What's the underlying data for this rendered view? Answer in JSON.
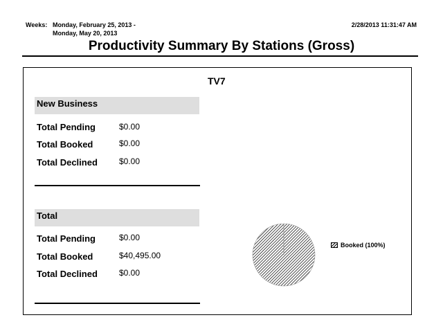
{
  "header": {
    "weeks_label": "Weeks:",
    "weeks_line1": "Monday, February 25, 2013 -",
    "weeks_line2": "Monday, May 20, 2013",
    "timestamp": "2/28/2013 11:31:47 AM",
    "title": "Productivity Summary By Stations (Gross)"
  },
  "station": "TV7",
  "sections": [
    {
      "title": "New Business",
      "rows": [
        {
          "label": "Total Pending",
          "value": "$0.00"
        },
        {
          "label": "Total Booked",
          "value": "$0.00"
        },
        {
          "label": "Total Declined",
          "value": "$0.00"
        }
      ]
    },
    {
      "title": "Total",
      "rows": [
        {
          "label": "Total Pending",
          "value": "$0.00"
        },
        {
          "label": "Total Booked",
          "value": "$40,495.00"
        },
        {
          "label": "Total Declined",
          "value": "$0.00"
        }
      ]
    }
  ],
  "chart_data": {
    "type": "pie",
    "categories": [
      "Booked"
    ],
    "values": [
      100
    ],
    "legend": [
      "Booked (100%)"
    ],
    "legend_position": "right"
  }
}
